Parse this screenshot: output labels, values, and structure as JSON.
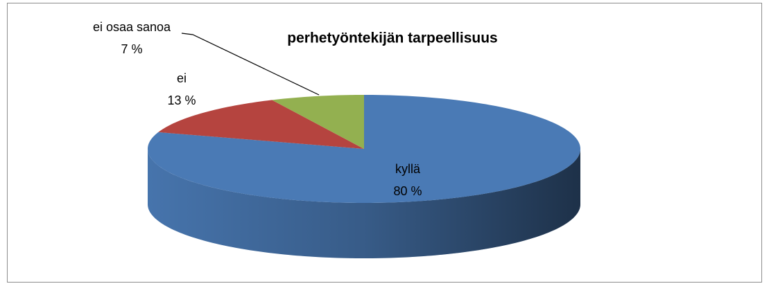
{
  "chart_data": {
    "type": "pie3d",
    "title": "perhetyöntekijän tarpeellisuus",
    "categories": [
      "kyllä",
      "ei",
      "ei osaa sanoa"
    ],
    "values": [
      80,
      13,
      7
    ],
    "value_labels": [
      "80 %",
      "13 %",
      "7 %"
    ],
    "colors": [
      "#4a7ab5",
      "#b5443f",
      "#93b050"
    ]
  }
}
